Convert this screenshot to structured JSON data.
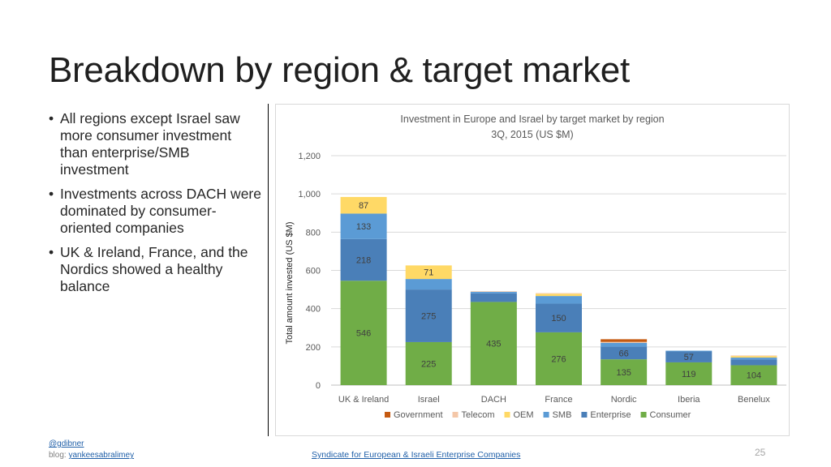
{
  "slide": {
    "title": "Breakdown by region & target market",
    "bullets": [
      "All regions except Israel saw more consumer investment than enterprise/SMB investment",
      "Investments across DACH were dominated by consumer-oriented companies",
      "UK & Ireland, France, and the Nordics showed a healthy balance"
    ],
    "bullet_glyph": "•",
    "footer": {
      "handle": "@gdibner",
      "blog_label": "blog:",
      "blog_link": "yankeesabralimey",
      "center_link": "Syndicate for European & Israeli Enterprise Companies",
      "page_number": "25"
    }
  },
  "chart_data": {
    "type": "bar",
    "stacked": true,
    "title": "Investment in Europe and Israel by target market by region",
    "subtitle": "3Q, 2015 (US $M)",
    "xlabel": "",
    "ylabel": "Total amount invested (US $M)",
    "ylim": [
      0,
      1200
    ],
    "yticks": [
      0,
      200,
      400,
      600,
      800,
      1000,
      1200
    ],
    "ytick_labels": [
      "0",
      "200",
      "400",
      "600",
      "800",
      "1,000",
      "1,200"
    ],
    "grid": true,
    "legend_position": "bottom",
    "categories": [
      "UK & Ireland",
      "Israel",
      "DACH",
      "France",
      "Nordic",
      "Iberia",
      "Benelux"
    ],
    "series": [
      {
        "name": "Consumer",
        "color": "#70ad47",
        "values": [
          546,
          225,
          435,
          276,
          135,
          119,
          104
        ],
        "labels": [
          "546",
          "225",
          "435",
          "276",
          "135",
          "119",
          "104"
        ]
      },
      {
        "name": "Enterprise",
        "color": "#4a7fb8",
        "values": [
          218,
          275,
          45,
          150,
          66,
          57,
          30
        ],
        "labels": [
          "218",
          "275",
          "",
          "150",
          "66",
          "57",
          ""
        ]
      },
      {
        "name": "SMB",
        "color": "#5b9bd5",
        "values": [
          133,
          55,
          8,
          40,
          20,
          4,
          10
        ],
        "labels": [
          "133",
          "",
          "",
          "",
          "",
          "",
          ""
        ]
      },
      {
        "name": "OEM",
        "color": "#ffd966",
        "values": [
          87,
          71,
          0,
          12,
          0,
          0,
          8
        ],
        "labels": [
          "87",
          "71",
          "",
          "",
          "",
          "",
          ""
        ]
      },
      {
        "name": "Telecom",
        "color": "#f4c7a8",
        "values": [
          0,
          0,
          3,
          3,
          5,
          0,
          3
        ],
        "labels": [
          "",
          "",
          "",
          "",
          "",
          "",
          ""
        ]
      },
      {
        "name": "Government",
        "color": "#c55a11",
        "values": [
          0,
          0,
          0,
          0,
          14,
          0,
          0
        ],
        "labels": [
          "",
          "",
          "",
          "",
          "",
          "",
          ""
        ]
      }
    ],
    "legend_order": [
      "Government",
      "Telecom",
      "OEM",
      "SMB",
      "Enterprise",
      "Consumer"
    ]
  }
}
